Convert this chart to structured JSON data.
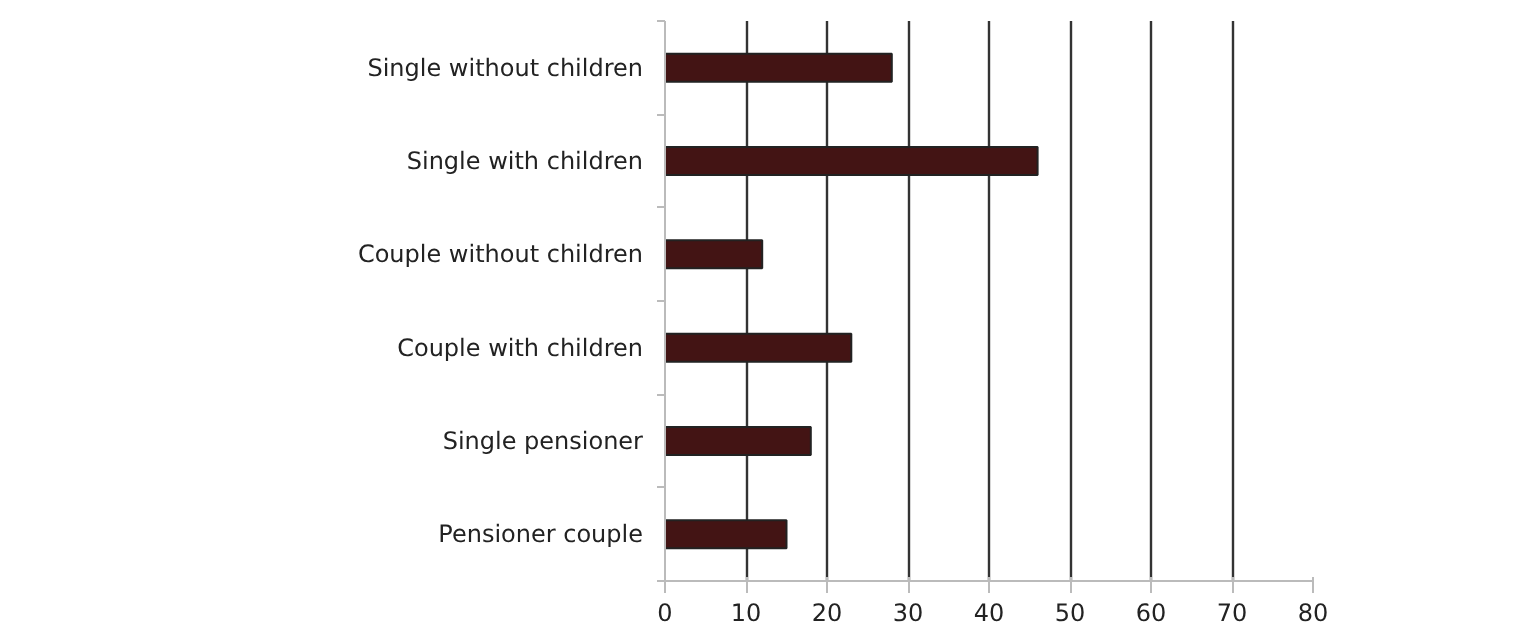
{
  "chart_data": {
    "type": "bar",
    "orientation": "horizontal",
    "categories": [
      "Single without children",
      "Single with children",
      "Couple without children",
      "Couple with children",
      "Single pensioner",
      "Pensioner couple"
    ],
    "values": [
      28,
      46,
      12,
      23,
      18,
      15
    ],
    "color": "#431414",
    "xlim": [
      0,
      80
    ],
    "xticks": [
      0,
      10,
      20,
      30,
      40,
      50,
      60,
      70,
      80
    ],
    "grid": "x"
  }
}
